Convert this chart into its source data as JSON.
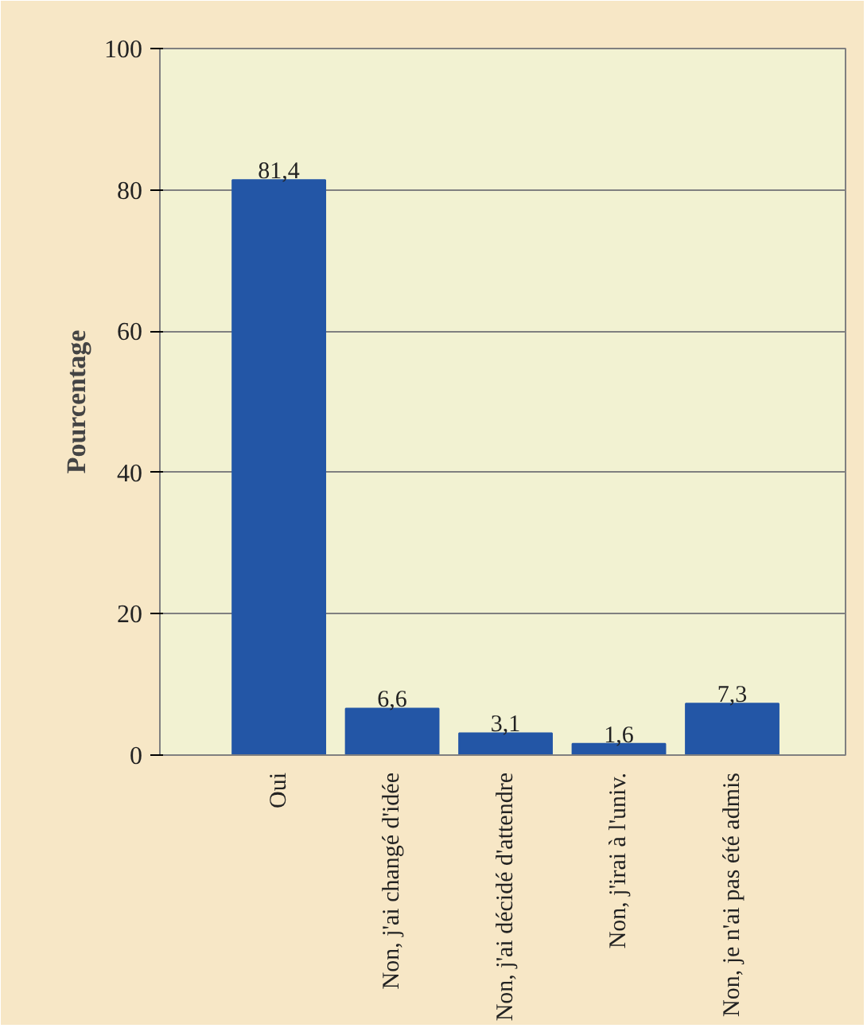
{
  "chart_data": {
    "type": "bar",
    "ylabel": "Pourcentage",
    "categories": [
      "Oui",
      "Non, j'ai changé d'idée",
      "Non, j'ai décidé d'attendre",
      "Non, j'irai à l'univ.",
      "Non, je n'ai pas été admis"
    ],
    "values": [
      81.4,
      6.6,
      3.1,
      1.6,
      7.3
    ],
    "color": "#2356a6",
    "value_labels": [
      "81,4",
      "6,6",
      "3,1",
      "1,6",
      "7,3"
    ],
    "ylim": [
      0,
      100
    ],
    "yticks": [
      0,
      20,
      40,
      60,
      80,
      100
    ],
    "grid": "y"
  }
}
